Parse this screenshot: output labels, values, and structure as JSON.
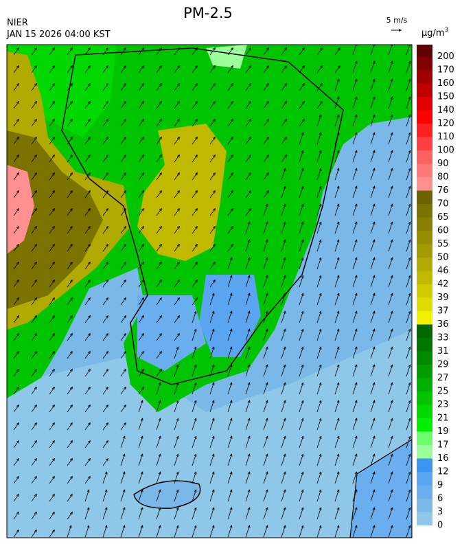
{
  "header": {
    "agency": "NIER",
    "datetime": "JAN 15 2026 04:00 KST",
    "title": "PM-2.5"
  },
  "wind_legend": {
    "label": "5 m/s"
  },
  "colorbar": {
    "unit": {
      "base": "μg/m",
      "sup": "3"
    },
    "labels": [
      "200",
      "170",
      "160",
      "150",
      "140",
      "120",
      "110",
      "100",
      "90",
      "80",
      "76",
      "70",
      "65",
      "60",
      "55",
      "50",
      "46",
      "42",
      "39",
      "37",
      "36",
      "33",
      "31",
      "29",
      "27",
      "25",
      "23",
      "21",
      "19",
      "17",
      "16",
      "12",
      "9",
      "6",
      "3",
      "0"
    ],
    "colors": [
      "#600000",
      "#800000",
      "#a00000",
      "#c00000",
      "#e00000",
      "#ff0000",
      "#ff2020",
      "#ff4040",
      "#ff6060",
      "#ff7878",
      "#ff9090",
      "#6b6400",
      "#7a7300",
      "#878000",
      "#958e00",
      "#a39c00",
      "#b1aa00",
      "#c0b900",
      "#d0cc00",
      "#e0dc00",
      "#f0f000",
      "#006600",
      "#007800",
      "#008a00",
      "#009c00",
      "#00b000",
      "#00c400",
      "#00d800",
      "#00ee00",
      "#6cff6c",
      "#9cff9c",
      "#3c96f0",
      "#5aa4f0",
      "#6aaeee",
      "#7ab8e8",
      "#8fc7e8"
    ]
  }
}
